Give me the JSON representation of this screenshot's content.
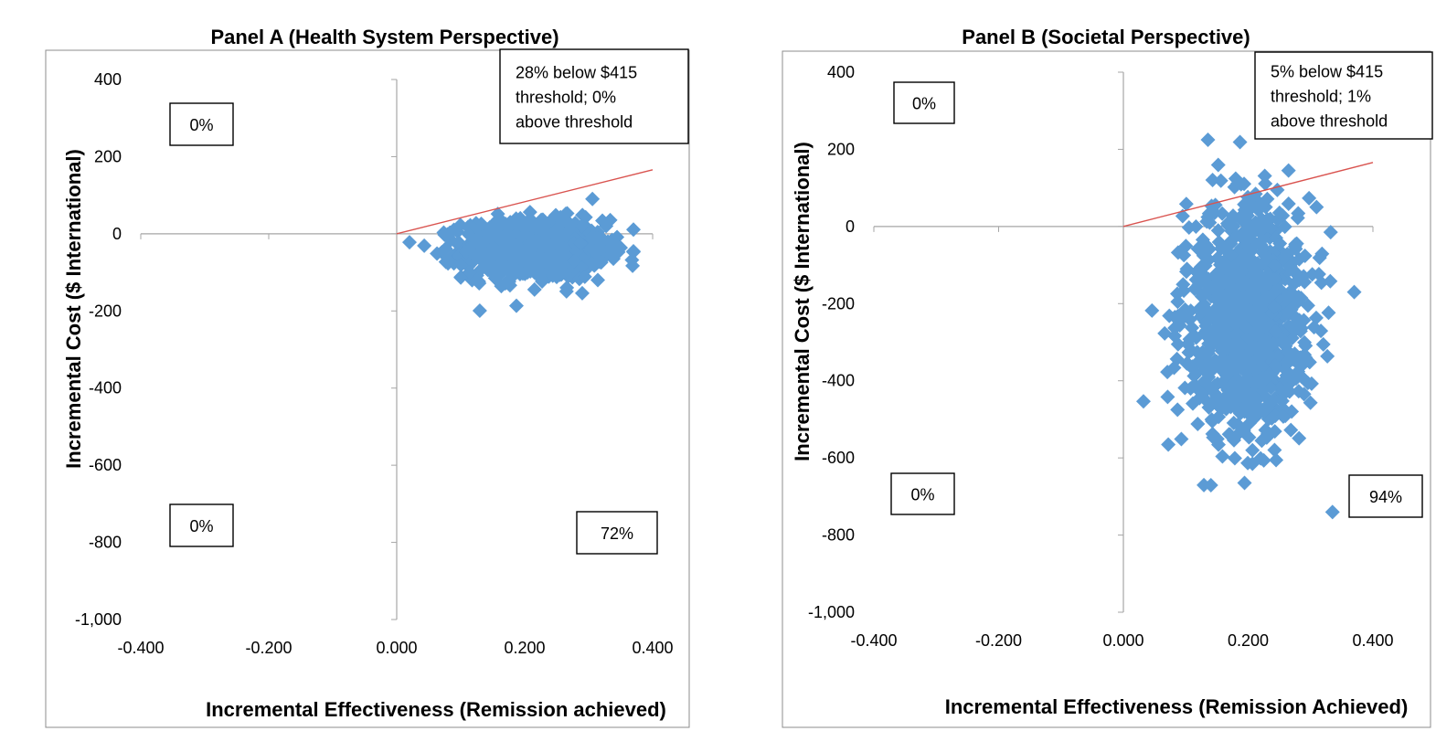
{
  "chart_data": [
    {
      "type": "scatter",
      "title": "Panel A (Health System Perspective)",
      "xlabel": "Incremental Effectiveness (Remission achieved)",
      "ylabel": "Incremental Cost ($ International)",
      "xlim": [
        -0.4,
        0.4
      ],
      "ylim": [
        -1000,
        400
      ],
      "x_ticks": [
        "-0.400",
        "-0.200",
        "0.000",
        "0.200",
        "0.400"
      ],
      "y_ticks": [
        "400",
        "200",
        "0",
        "-200",
        "-400",
        "-600",
        "-800",
        "-1,000"
      ],
      "threshold": {
        "slope": 415,
        "color": "#d9534f"
      },
      "point_color": "#5b9bd5",
      "cloud": {
        "x_mean": 0.215,
        "x_sd": 0.055,
        "y_mean": -40,
        "y_sd": 38,
        "n": 1000
      },
      "annotations": [
        {
          "text": [
            "28% below $415",
            "threshold; 0%",
            "above threshold"
          ],
          "quadrant": "NE"
        },
        {
          "text": [
            "0%"
          ],
          "quadrant": "NW"
        },
        {
          "text": [
            "0%"
          ],
          "quadrant": "SW"
        },
        {
          "text": [
            "72%"
          ],
          "quadrant": "SE"
        }
      ],
      "grid": false
    },
    {
      "type": "scatter",
      "title": "Panel B (Societal Perspective)",
      "xlabel": "Incremental Effectiveness (Remission Achieved)",
      "ylabel": "Incremental Cost ($ International)",
      "xlim": [
        -0.4,
        0.4
      ],
      "ylim": [
        -1000,
        400
      ],
      "x_ticks": [
        "-0.400",
        "-0.200",
        "0.000",
        "0.200",
        "0.400"
      ],
      "y_ticks": [
        "400",
        "200",
        "0",
        "-200",
        "-400",
        "-600",
        "-800",
        "-1,000"
      ],
      "threshold": {
        "slope": 415,
        "color": "#d9534f"
      },
      "point_color": "#5b9bd5",
      "cloud": {
        "x_mean": 0.2,
        "x_sd": 0.05,
        "y_mean": -240,
        "y_sd": 150,
        "n": 1000
      },
      "annotations": [
        {
          "text": [
            "5% below $415",
            "threshold; 1%",
            "above threshold"
          ],
          "quadrant": "NE"
        },
        {
          "text": [
            "0%"
          ],
          "quadrant": "NW"
        },
        {
          "text": [
            "0%"
          ],
          "quadrant": "SW"
        },
        {
          "text": [
            "94%"
          ],
          "quadrant": "SE"
        }
      ],
      "grid": false
    }
  ]
}
